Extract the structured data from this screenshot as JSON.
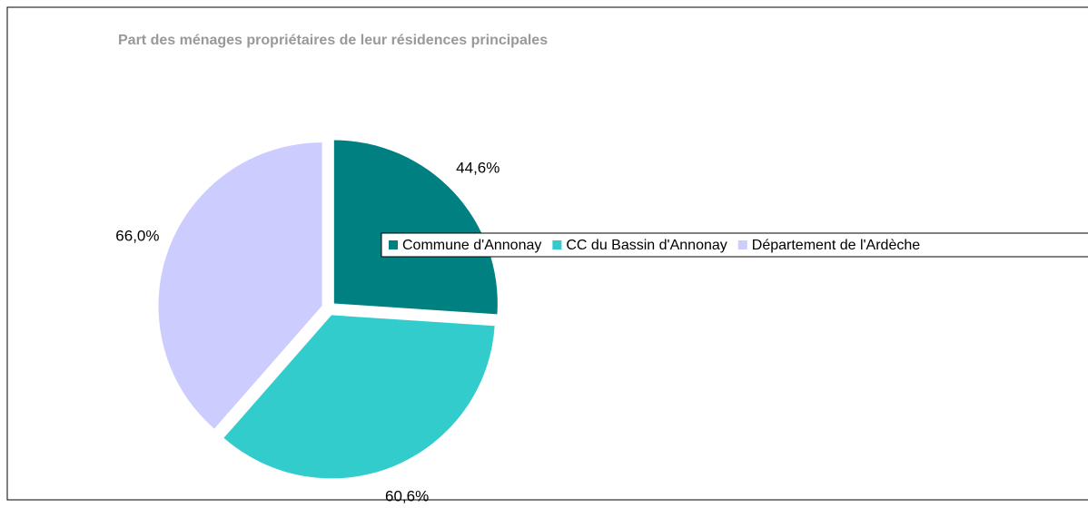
{
  "chart_data": {
    "type": "pie",
    "title": "Part des ménages propriétaires de leur résidences principales",
    "categories": [
      "Commune d'Annonay",
      "CC du Bassin d'Annonay",
      "Département de l'Ardèche"
    ],
    "values": [
      44.6,
      60.6,
      66.0
    ],
    "value_labels": [
      "44,6%",
      "60,6%",
      "66,0%"
    ],
    "colors": [
      "#008080",
      "#33cccc",
      "#ccccff"
    ]
  }
}
